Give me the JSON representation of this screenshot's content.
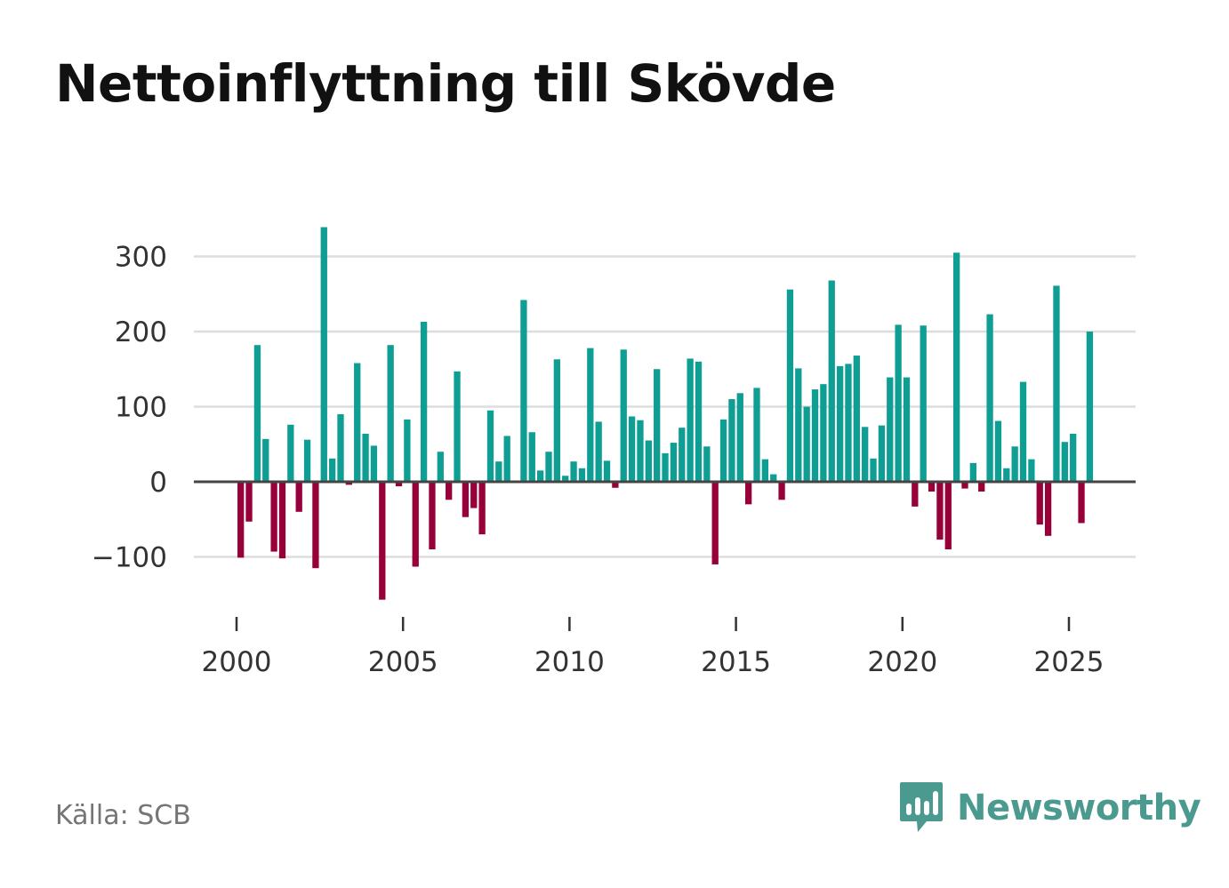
{
  "title": "Nettoinflyttning till Skövde",
  "source": "Källa: SCB",
  "brand": "Newsworthy",
  "colors": {
    "positive": "#0e9e94",
    "negative": "#98003a",
    "grid": "#dddddd",
    "zero_line": "#444444",
    "brand": "#4a9a8f"
  },
  "chart_data": {
    "type": "bar",
    "title": "Nettoinflyttning till Skövde",
    "xlabel": "",
    "ylabel": "",
    "xlim": [
      1999.5,
      2027
    ],
    "ylim": [
      -160,
      340
    ],
    "yticks": [
      -100,
      0,
      100,
      200,
      300
    ],
    "ytick_labels": [
      "−100",
      "0",
      "100",
      "200",
      "300"
    ],
    "xticks": [
      2000,
      2005,
      2010,
      2015,
      2020,
      2025
    ],
    "xtick_labels": [
      "2000",
      "2005",
      "2010",
      "2015",
      "2020",
      "2025"
    ],
    "frequency": "quarterly",
    "start_year": 2000,
    "values": [
      -101,
      -53,
      182,
      57,
      -93,
      -102,
      76,
      -40,
      56,
      -115,
      339,
      31,
      90,
      -4,
      158,
      64,
      48,
      -157,
      182,
      -6,
      83,
      -113,
      213,
      -90,
      40,
      -24,
      147,
      -47,
      -35,
      -70,
      95,
      27,
      61,
      0,
      242,
      66,
      15,
      40,
      163,
      8,
      27,
      18,
      178,
      80,
      28,
      -8,
      176,
      87,
      82,
      55,
      150,
      38,
      52,
      72,
      164,
      160,
      47,
      -110,
      83,
      110,
      118,
      -30,
      125,
      30,
      10,
      -24,
      256,
      151,
      100,
      123,
      130,
      268,
      154,
      157,
      168,
      73,
      31,
      75,
      139,
      209,
      139,
      -33,
      208,
      -13,
      -77,
      -90,
      305,
      -9,
      25,
      -13,
      223,
      81,
      18,
      47,
      133,
      30,
      -57,
      -72,
      261,
      53,
      64,
      -55,
      200
    ]
  }
}
